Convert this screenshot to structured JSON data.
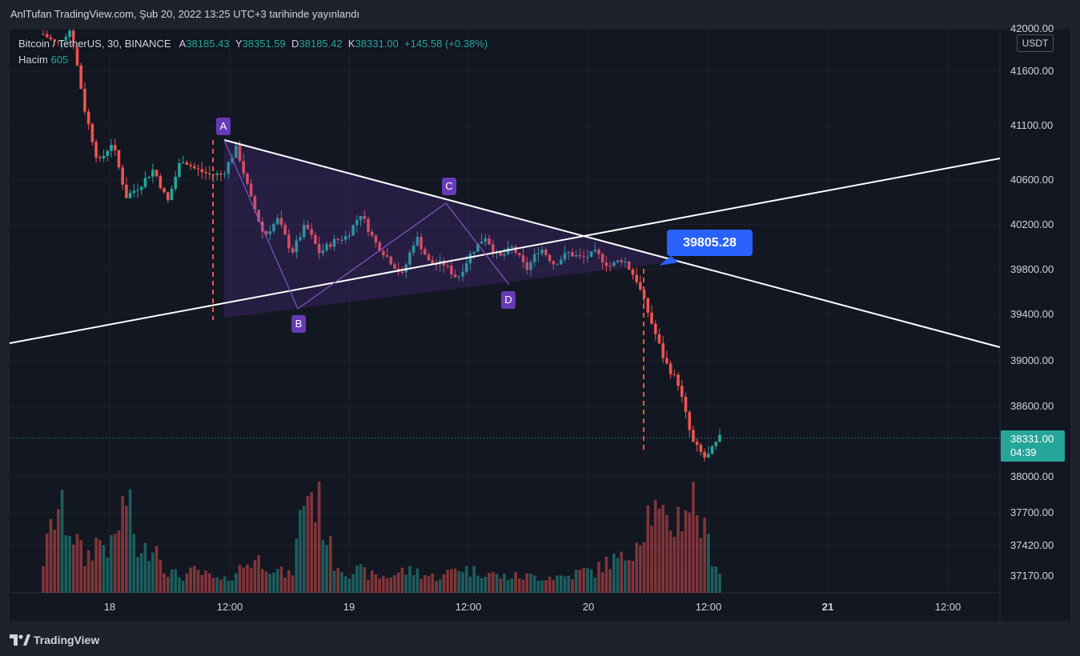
{
  "header": {
    "publisher_line": "AnlTufan TradingView.com, Şub 20, 2022 13:25 UTC+3 tarihinde yayınlandı"
  },
  "legend": {
    "symbol": "Bitcoin / TetherUS, 30, BINANCE",
    "open_label": "A",
    "open": "38185.43",
    "high_label": "Y",
    "high": "38351.59",
    "low_label": "D",
    "low": "38185.42",
    "close_label": "K",
    "close": "38331.00",
    "change": "+145.58 (+0.38%)",
    "volume_label": "Hacim",
    "volume": "605"
  },
  "price_axis": {
    "currency": "USDT",
    "last_price": "38331.00",
    "countdown": "04:39"
  },
  "callout": {
    "value": "39805.28"
  },
  "pattern_points": {
    "a": "A",
    "b": "B",
    "c": "C",
    "d": "D"
  },
  "footer": {
    "brand": "TradingView"
  },
  "colors": {
    "up": "#26a69a",
    "down": "#ef5350",
    "pattern_fill": "#673ab7",
    "trendline": "#ffffff",
    "callout": "#2962ff",
    "background": "#131722"
  },
  "chart_data": {
    "type": "candlestick",
    "symbol": "Bitcoin / TetherUS",
    "interval": "30",
    "exchange": "BINANCE",
    "x_ticks": [
      "18",
      "12:00",
      "19",
      "12:00",
      "20",
      "12:00",
      "21",
      "12:00"
    ],
    "y_ticks": [
      "42000.00",
      "41600.00",
      "41100.00",
      "40600.00",
      "40200.00",
      "39800.00",
      "39400.00",
      "39000.00",
      "38600.00",
      "38000.00",
      "37700.00",
      "37420.00",
      "37170.00"
    ],
    "y_range": [
      37000,
      42000
    ],
    "last_price": 38331.0,
    "price_path": [
      41950,
      41850,
      42000,
      41250,
      40750,
      40950,
      40450,
      40550,
      40700,
      40400,
      40800,
      40700,
      40650,
      40650,
      40900,
      40450,
      40100,
      40250,
      39950,
      40200,
      39950,
      40050,
      40100,
      40300,
      40050,
      39900,
      39750,
      40100,
      39850,
      39850,
      39720,
      39950,
      40100,
      39900,
      40000,
      39800,
      40000,
      39850,
      39950,
      39900,
      39950,
      39830,
      39900,
      39700,
      39350,
      39000,
      38800,
      38300,
      38150,
      38331
    ],
    "volume_path": [
      0.3,
      0.8,
      0.6,
      0.3,
      0.5,
      0.4,
      0.9,
      0.3,
      0.5,
      0.2,
      0.15,
      0.2,
      0.15,
      0.1,
      0.2,
      0.3,
      0.3,
      0.2,
      0.15,
      1.0,
      0.8,
      0.3,
      0.2,
      0.2,
      0.15,
      0.15,
      0.2,
      0.2,
      0.15,
      0.15,
      0.25,
      0.2,
      0.2,
      0.15,
      0.15,
      0.15,
      0.15,
      0.15,
      0.15,
      0.2,
      0.2,
      0.3,
      0.3,
      0.5,
      0.8,
      0.6,
      0.7,
      0.9,
      0.5,
      0.2
    ]
  }
}
